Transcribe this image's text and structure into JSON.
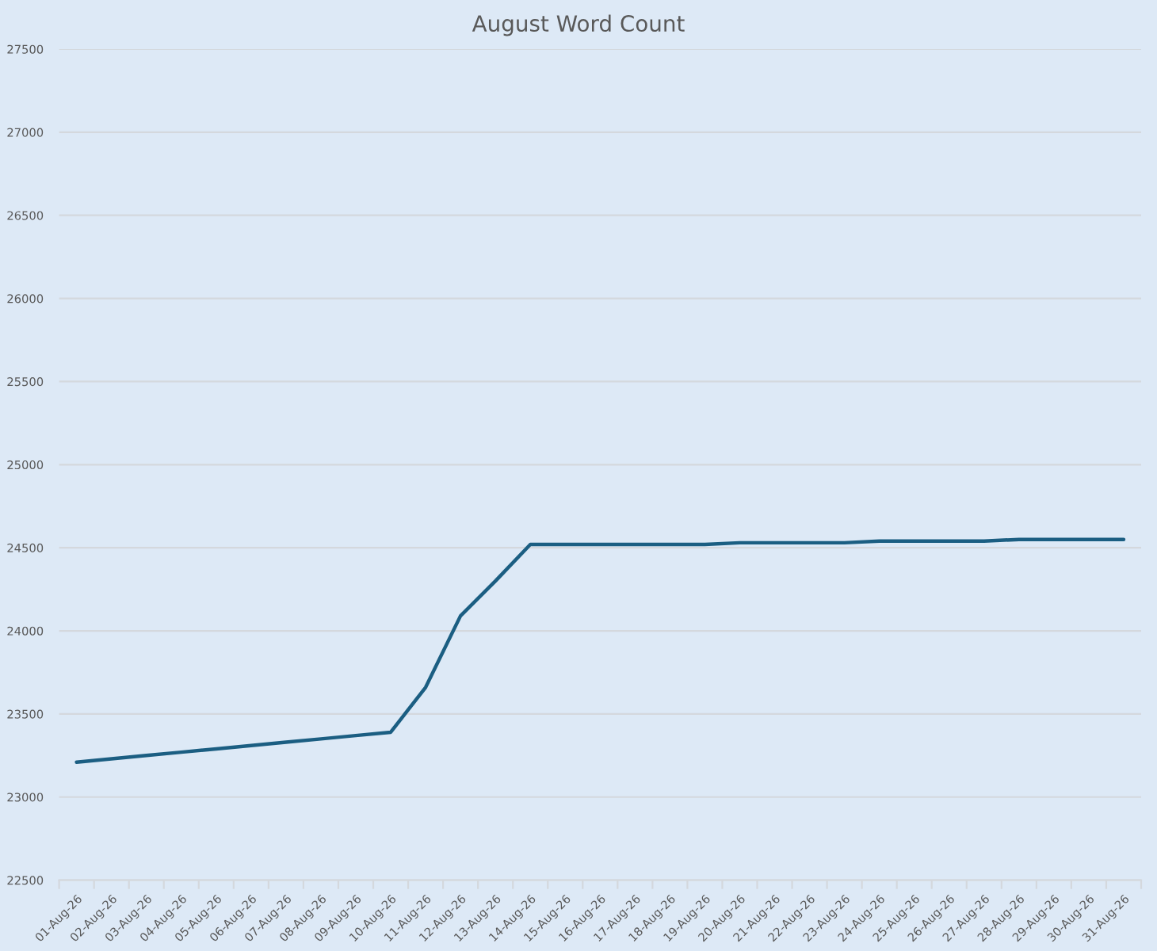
{
  "chart_data": {
    "type": "line",
    "title": "August Word Count",
    "categories": [
      "01-Aug-26",
      "02-Aug-26",
      "03-Aug-26",
      "04-Aug-26",
      "05-Aug-26",
      "06-Aug-26",
      "07-Aug-26",
      "08-Aug-26",
      "09-Aug-26",
      "10-Aug-26",
      "11-Aug-26",
      "12-Aug-26",
      "13-Aug-26",
      "14-Aug-26",
      "15-Aug-26",
      "16-Aug-26",
      "17-Aug-26",
      "18-Aug-26",
      "19-Aug-26",
      "20-Aug-26",
      "21-Aug-26",
      "22-Aug-26",
      "23-Aug-26",
      "24-Aug-26",
      "25-Aug-26",
      "26-Aug-26",
      "27-Aug-26",
      "28-Aug-26",
      "29-Aug-26",
      "30-Aug-26",
      "31-Aug-26"
    ],
    "series": [
      {
        "color": "#1b5e82",
        "values": [
          23210,
          23230,
          23250,
          23270,
          23290,
          23310,
          23330,
          23350,
          23370,
          23390,
          23660,
          24090,
          24300,
          24520,
          24520,
          24520,
          24520,
          24520,
          24520,
          24530,
          24530,
          24530,
          24530,
          24540,
          24540,
          24540,
          24540,
          24550,
          24550,
          24550,
          24550
        ]
      }
    ],
    "ylim": [
      22500,
      27500
    ],
    "yticks": [
      22500,
      23000,
      23500,
      24000,
      24500,
      25000,
      25500,
      26000,
      26500,
      27000,
      27500
    ],
    "grid": "y",
    "line_style": "solid"
  }
}
